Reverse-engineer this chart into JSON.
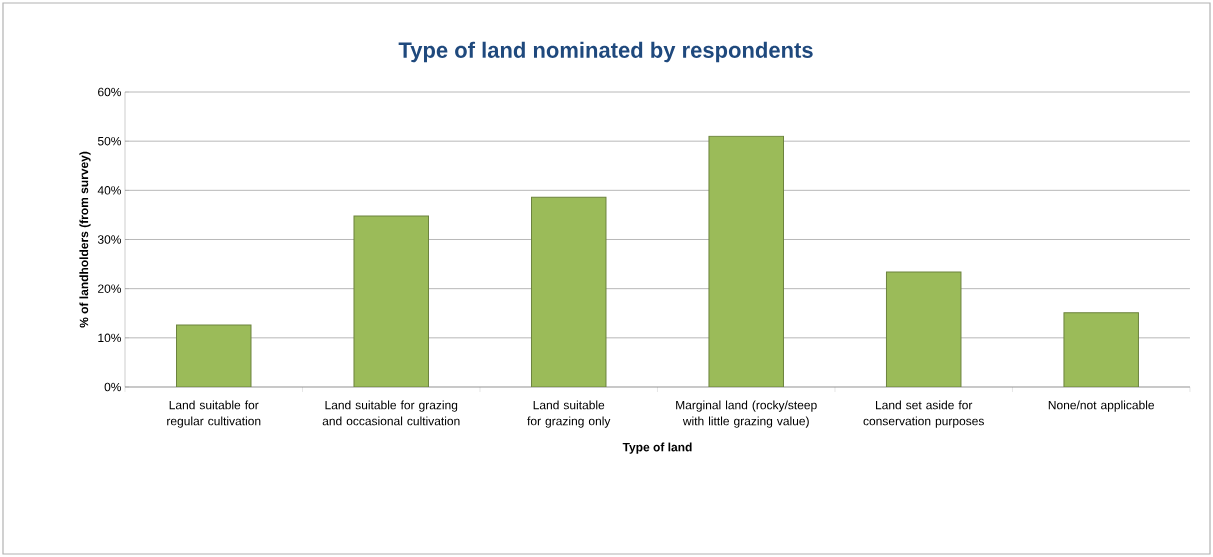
{
  "chart_data": {
    "type": "bar",
    "title": "Type of land nominated by respondents",
    "xlabel": "Type of land",
    "ylabel": "% of landholders (from survey)",
    "categories": [
      "Land suitable for regular cultivation",
      "Land suitable for grazing and occasional cultivation",
      "Land suitable for grazing only",
      "Marginal land (rocky/steep with little grazing value)",
      "Land set aside for conservation purposes",
      "None/not applicable"
    ],
    "values": [
      12.6,
      34.8,
      38.6,
      51.0,
      23.4,
      15.1
    ],
    "color": "#9bbb59",
    "ylim": [
      0,
      60
    ],
    "yticks": [
      {
        "value": 0,
        "label": "0%"
      },
      {
        "value": 10,
        "label": "10%"
      },
      {
        "value": 20,
        "label": "20%"
      },
      {
        "value": 30,
        "label": "30%"
      },
      {
        "value": 40,
        "label": "40%"
      },
      {
        "value": 50,
        "label": "50%"
      },
      {
        "value": 60,
        "label": "60%"
      }
    ],
    "grid": "y"
  }
}
